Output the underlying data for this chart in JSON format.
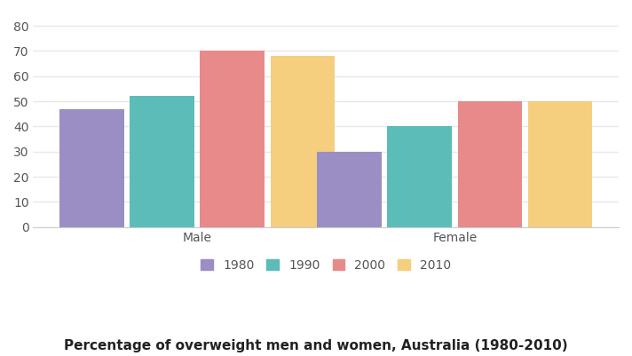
{
  "categories": [
    "Male",
    "Female"
  ],
  "years": [
    "1980",
    "1990",
    "2000",
    "2010"
  ],
  "values": {
    "Male": [
      47,
      52,
      70,
      68
    ],
    "Female": [
      30,
      40,
      50,
      50
    ]
  },
  "bar_colors": [
    "#9b8ec4",
    "#5bbcb8",
    "#e88a8a",
    "#f5ce7e"
  ],
  "title": "Percentage of overweight men and women, Australia (1980-2010)",
  "title_fontsize": 11,
  "ylim": [
    0,
    85
  ],
  "yticks": [
    0,
    10,
    20,
    30,
    40,
    50,
    60,
    70,
    80
  ],
  "background_color": "#ffffff",
  "grid_color": "#e8e8e8",
  "bar_width": 0.55,
  "group_centers": [
    1.4,
    3.6
  ],
  "legend_fontsize": 10,
  "tick_fontsize": 10,
  "axis_color": "#cccccc",
  "label_color": "#555555"
}
